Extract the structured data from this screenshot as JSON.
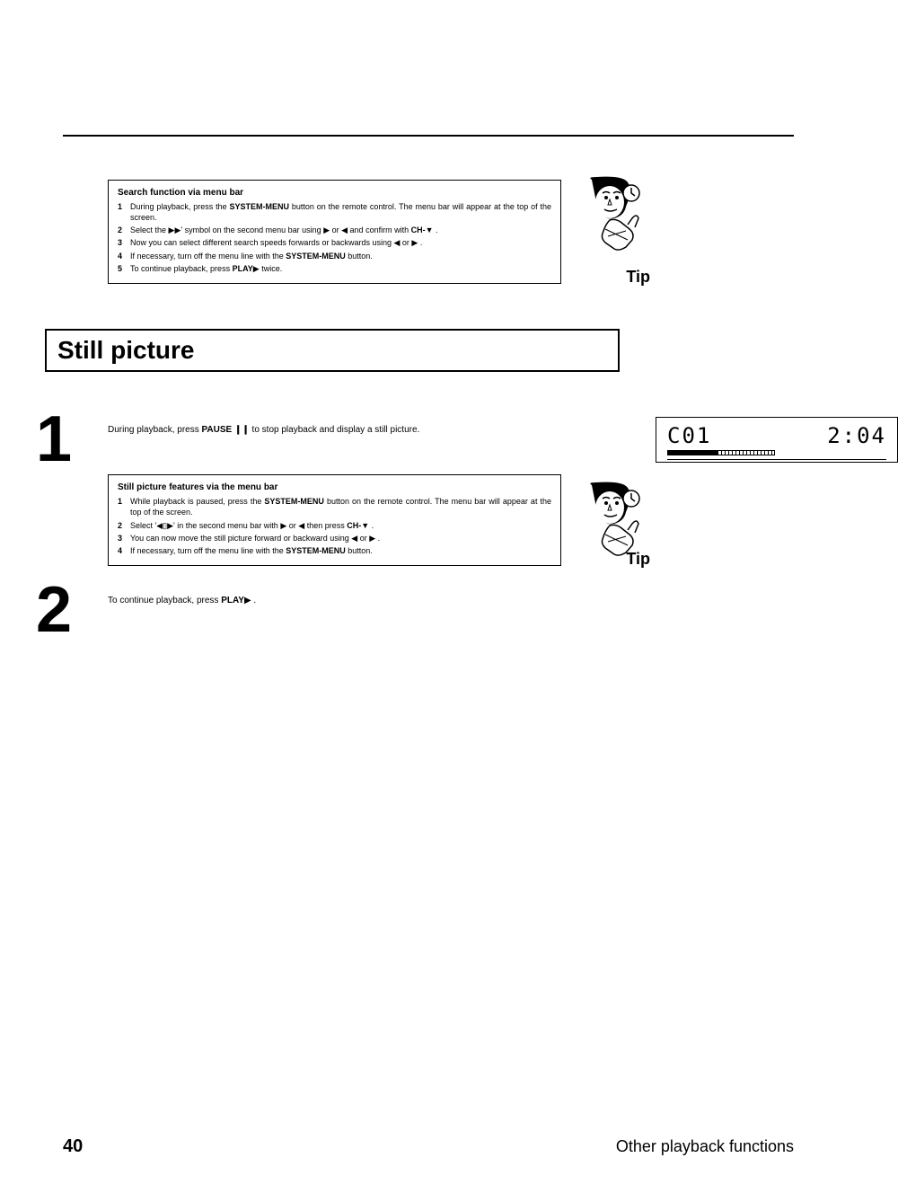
{
  "searchBox": {
    "title": "Search function via menu bar",
    "items": [
      {
        "n": "1",
        "pre": "During playback, press the ",
        "btn": "SYSTEM-MENU",
        "post": " button on the remote control. The menu bar will appear at the top of the screen."
      },
      {
        "n": "2",
        "pre": "Select the ",
        "sym1": "▶▶",
        "mid": "' symbol on the second menu bar using ",
        "sym2": "▶",
        "mid2": " or ",
        "sym3": "◀",
        "mid3": " and confirm with ",
        "btn": "CH-",
        "sym4": "▼",
        "post": " ."
      },
      {
        "n": "3",
        "t": "Now you can select different search speeds forwards or backwards using ",
        "sym1": "◀",
        "mid": " or ",
        "sym2": "▶",
        "post": " ."
      },
      {
        "n": "4",
        "pre": "If necessary, turn off the menu line with the ",
        "btn": "SYSTEM-MENU",
        "post": " button."
      },
      {
        "n": "5",
        "pre": "To continue playback, press ",
        "btn": "PLAY",
        "sym": "▶",
        "post": " twice."
      }
    ],
    "tip": "Tip"
  },
  "sectionTitle": "Still picture",
  "step1": {
    "num": "1",
    "pre": "During playback, press ",
    "btn": "PAUSE",
    "sym": "❙❙",
    "post": " to stop playback and display a still picture."
  },
  "lcd": {
    "left": "C01",
    "right": "2:04",
    "filled": 14,
    "total": 30
  },
  "stillBox": {
    "title": "Still picture features via the menu bar",
    "items": [
      {
        "n": "1",
        "pre": "While playback is paused, press the ",
        "btn": "SYSTEM-MENU",
        "post": " button on the remote control. The menu bar will appear at the top of the screen."
      },
      {
        "n": "2",
        "pre": "Select '",
        "sym1": "◀▯▶",
        "mid": "' in the second menu bar with ",
        "sym2": "▶",
        "mid2": " or ",
        "sym3": "◀",
        "mid3": " then press ",
        "btn": "CH-",
        "sym4": "▼",
        "post": " ."
      },
      {
        "n": "3",
        "pre": "You can now move the still picture forward or backward using ",
        "sym1": "◀",
        "mid": " or ",
        "sym2": "▶",
        "post": " ."
      },
      {
        "n": "4",
        "pre": "If necessary, turn off the menu line with the ",
        "btn": "SYSTEM-MENU",
        "post": " button."
      }
    ],
    "tip": "Tip"
  },
  "step2": {
    "num": "2",
    "pre": "To continue playback, press ",
    "btn": "PLAY",
    "sym": "▶",
    "post": " ."
  },
  "footer": {
    "page": "40",
    "chapter": "Other playback functions"
  }
}
